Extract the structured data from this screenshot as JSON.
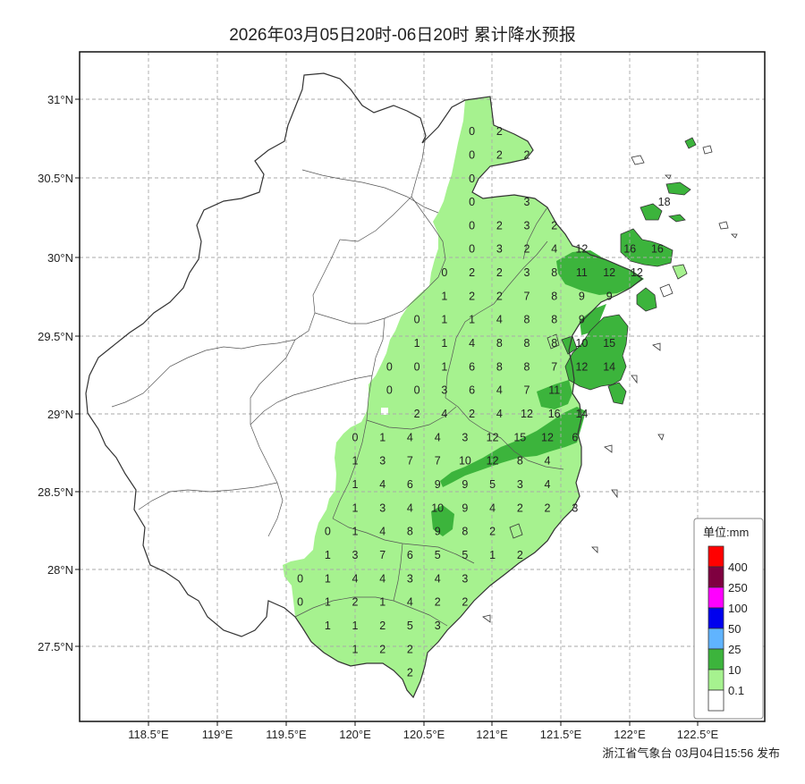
{
  "title": "2026年03月05日20时-06日20时 累计降水预报",
  "footer": "浙江省气象台 03月04日15:56 发布",
  "lat_ticks": [
    "31°N",
    "30.5°N",
    "30°N",
    "29.5°N",
    "29°N",
    "28.5°N",
    "28°N",
    "27.5°N"
  ],
  "lon_ticks": [
    "118.5°E",
    "119°E",
    "119.5°E",
    "120°E",
    "120.5°E",
    "121°E",
    "121.5°E",
    "122°E",
    "122.5°E"
  ],
  "legend": {
    "title": "单位:mm",
    "items": [
      {
        "label": "400",
        "color": "#ff0000"
      },
      {
        "label": "250",
        "color": "#7f0040"
      },
      {
        "label": "100",
        "color": "#ff00ff"
      },
      {
        "label": "50",
        "color": "#0000ee"
      },
      {
        "label": "25",
        "color": "#60b4ff"
      },
      {
        "label": "10",
        "color": "#3cb43c"
      },
      {
        "label": "0.1",
        "color": "#a6f28f"
      },
      {
        "label": "",
        "color": "#ffffff"
      }
    ]
  },
  "colors": {
    "light_rain": "#a6f28f",
    "moderate_rain": "#3cb43c",
    "border": "#333333",
    "grid": "#aaaaaa"
  },
  "grid_values": [
    {
      "lat": 30.8,
      "lon": 120.85,
      "v": "0"
    },
    {
      "lat": 30.8,
      "lon": 121.05,
      "v": "2"
    },
    {
      "lat": 30.65,
      "lon": 120.85,
      "v": "0"
    },
    {
      "lat": 30.65,
      "lon": 121.05,
      "v": "2"
    },
    {
      "lat": 30.65,
      "lon": 121.25,
      "v": "2"
    },
    {
      "lat": 30.5,
      "lon": 120.85,
      "v": "0"
    },
    {
      "lat": 30.35,
      "lon": 120.85,
      "v": "0"
    },
    {
      "lat": 30.35,
      "lon": 121.25,
      "v": "3"
    },
    {
      "lat": 30.2,
      "lon": 120.85,
      "v": "0"
    },
    {
      "lat": 30.2,
      "lon": 121.05,
      "v": "2"
    },
    {
      "lat": 30.2,
      "lon": 121.25,
      "v": "3"
    },
    {
      "lat": 30.2,
      "lon": 121.45,
      "v": "2"
    },
    {
      "lat": 30.05,
      "lon": 120.85,
      "v": "0"
    },
    {
      "lat": 30.05,
      "lon": 121.05,
      "v": "3"
    },
    {
      "lat": 30.05,
      "lon": 121.25,
      "v": "2"
    },
    {
      "lat": 30.05,
      "lon": 121.45,
      "v": "4"
    },
    {
      "lat": 30.05,
      "lon": 121.65,
      "v": "12"
    },
    {
      "lat": 30.35,
      "lon": 122.25,
      "v": "18"
    },
    {
      "lat": 30.05,
      "lon": 122.0,
      "v": "16"
    },
    {
      "lat": 30.05,
      "lon": 122.2,
      "v": "16"
    },
    {
      "lat": 29.9,
      "lon": 120.65,
      "v": "0"
    },
    {
      "lat": 29.9,
      "lon": 120.85,
      "v": "2"
    },
    {
      "lat": 29.9,
      "lon": 121.05,
      "v": "2"
    },
    {
      "lat": 29.9,
      "lon": 121.25,
      "v": "3"
    },
    {
      "lat": 29.9,
      "lon": 121.45,
      "v": "8"
    },
    {
      "lat": 29.9,
      "lon": 121.65,
      "v": "11"
    },
    {
      "lat": 29.9,
      "lon": 121.85,
      "v": "12"
    },
    {
      "lat": 29.9,
      "lon": 122.05,
      "v": "12"
    },
    {
      "lat": 29.75,
      "lon": 120.65,
      "v": "1"
    },
    {
      "lat": 29.75,
      "lon": 120.85,
      "v": "2"
    },
    {
      "lat": 29.75,
      "lon": 121.05,
      "v": "2"
    },
    {
      "lat": 29.75,
      "lon": 121.25,
      "v": "7"
    },
    {
      "lat": 29.75,
      "lon": 121.45,
      "v": "8"
    },
    {
      "lat": 29.75,
      "lon": 121.65,
      "v": "9"
    },
    {
      "lat": 29.75,
      "lon": 121.85,
      "v": "9"
    },
    {
      "lat": 29.6,
      "lon": 120.45,
      "v": "0"
    },
    {
      "lat": 29.6,
      "lon": 120.65,
      "v": "1"
    },
    {
      "lat": 29.6,
      "lon": 120.85,
      "v": "1"
    },
    {
      "lat": 29.6,
      "lon": 121.05,
      "v": "4"
    },
    {
      "lat": 29.6,
      "lon": 121.25,
      "v": "8"
    },
    {
      "lat": 29.6,
      "lon": 121.45,
      "v": "8"
    },
    {
      "lat": 29.6,
      "lon": 121.65,
      "v": "9"
    },
    {
      "lat": 29.45,
      "lon": 120.45,
      "v": "1"
    },
    {
      "lat": 29.45,
      "lon": 120.65,
      "v": "1"
    },
    {
      "lat": 29.45,
      "lon": 120.85,
      "v": "4"
    },
    {
      "lat": 29.45,
      "lon": 121.05,
      "v": "8"
    },
    {
      "lat": 29.45,
      "lon": 121.25,
      "v": "8"
    },
    {
      "lat": 29.45,
      "lon": 121.45,
      "v": "8"
    },
    {
      "lat": 29.45,
      "lon": 121.65,
      "v": "10"
    },
    {
      "lat": 29.45,
      "lon": 121.85,
      "v": "15"
    },
    {
      "lat": 29.3,
      "lon": 120.25,
      "v": "0"
    },
    {
      "lat": 29.3,
      "lon": 120.45,
      "v": "0"
    },
    {
      "lat": 29.3,
      "lon": 120.65,
      "v": "1"
    },
    {
      "lat": 29.3,
      "lon": 120.85,
      "v": "6"
    },
    {
      "lat": 29.3,
      "lon": 121.05,
      "v": "8"
    },
    {
      "lat": 29.3,
      "lon": 121.25,
      "v": "8"
    },
    {
      "lat": 29.3,
      "lon": 121.45,
      "v": "7"
    },
    {
      "lat": 29.3,
      "lon": 121.65,
      "v": "12"
    },
    {
      "lat": 29.3,
      "lon": 121.85,
      "v": "14"
    },
    {
      "lat": 29.15,
      "lon": 120.25,
      "v": "0"
    },
    {
      "lat": 29.15,
      "lon": 120.45,
      "v": "0"
    },
    {
      "lat": 29.15,
      "lon": 120.65,
      "v": "3"
    },
    {
      "lat": 29.15,
      "lon": 120.85,
      "v": "6"
    },
    {
      "lat": 29.15,
      "lon": 121.05,
      "v": "4"
    },
    {
      "lat": 29.15,
      "lon": 121.25,
      "v": "7"
    },
    {
      "lat": 29.15,
      "lon": 121.45,
      "v": "11"
    },
    {
      "lat": 29.0,
      "lon": 120.45,
      "v": "2"
    },
    {
      "lat": 29.0,
      "lon": 120.65,
      "v": "4"
    },
    {
      "lat": 29.0,
      "lon": 120.85,
      "v": "2"
    },
    {
      "lat": 29.0,
      "lon": 121.05,
      "v": "4"
    },
    {
      "lat": 29.0,
      "lon": 121.25,
      "v": "12"
    },
    {
      "lat": 29.0,
      "lon": 121.45,
      "v": "16"
    },
    {
      "lat": 29.0,
      "lon": 121.65,
      "v": "14"
    },
    {
      "lat": 28.85,
      "lon": 120.0,
      "v": "0"
    },
    {
      "lat": 28.85,
      "lon": 120.2,
      "v": "1"
    },
    {
      "lat": 28.85,
      "lon": 120.4,
      "v": "4"
    },
    {
      "lat": 28.85,
      "lon": 120.6,
      "v": "4"
    },
    {
      "lat": 28.85,
      "lon": 120.8,
      "v": "3"
    },
    {
      "lat": 28.85,
      "lon": 121.0,
      "v": "12"
    },
    {
      "lat": 28.85,
      "lon": 121.2,
      "v": "15"
    },
    {
      "lat": 28.85,
      "lon": 121.4,
      "v": "12"
    },
    {
      "lat": 28.85,
      "lon": 121.6,
      "v": "6"
    },
    {
      "lat": 28.7,
      "lon": 120.0,
      "v": "1"
    },
    {
      "lat": 28.7,
      "lon": 120.2,
      "v": "3"
    },
    {
      "lat": 28.7,
      "lon": 120.4,
      "v": "7"
    },
    {
      "lat": 28.7,
      "lon": 120.6,
      "v": "7"
    },
    {
      "lat": 28.7,
      "lon": 120.8,
      "v": "10"
    },
    {
      "lat": 28.7,
      "lon": 121.0,
      "v": "12"
    },
    {
      "lat": 28.7,
      "lon": 121.2,
      "v": "8"
    },
    {
      "lat": 28.7,
      "lon": 121.4,
      "v": "4"
    },
    {
      "lat": 28.55,
      "lon": 120.0,
      "v": "1"
    },
    {
      "lat": 28.55,
      "lon": 120.2,
      "v": "4"
    },
    {
      "lat": 28.55,
      "lon": 120.4,
      "v": "6"
    },
    {
      "lat": 28.55,
      "lon": 120.6,
      "v": "9"
    },
    {
      "lat": 28.55,
      "lon": 120.8,
      "v": "9"
    },
    {
      "lat": 28.55,
      "lon": 121.0,
      "v": "5"
    },
    {
      "lat": 28.55,
      "lon": 121.2,
      "v": "3"
    },
    {
      "lat": 28.55,
      "lon": 121.4,
      "v": "4"
    },
    {
      "lat": 28.4,
      "lon": 120.0,
      "v": "1"
    },
    {
      "lat": 28.4,
      "lon": 120.2,
      "v": "3"
    },
    {
      "lat": 28.4,
      "lon": 120.4,
      "v": "4"
    },
    {
      "lat": 28.4,
      "lon": 120.6,
      "v": "10"
    },
    {
      "lat": 28.4,
      "lon": 120.8,
      "v": "9"
    },
    {
      "lat": 28.4,
      "lon": 121.0,
      "v": "4"
    },
    {
      "lat": 28.4,
      "lon": 121.2,
      "v": "2"
    },
    {
      "lat": 28.4,
      "lon": 121.4,
      "v": "2"
    },
    {
      "lat": 28.4,
      "lon": 121.6,
      "v": "3"
    },
    {
      "lat": 28.25,
      "lon": 119.8,
      "v": "0"
    },
    {
      "lat": 28.25,
      "lon": 120.0,
      "v": "1"
    },
    {
      "lat": 28.25,
      "lon": 120.2,
      "v": "4"
    },
    {
      "lat": 28.25,
      "lon": 120.4,
      "v": "8"
    },
    {
      "lat": 28.25,
      "lon": 120.6,
      "v": "9"
    },
    {
      "lat": 28.25,
      "lon": 120.8,
      "v": "8"
    },
    {
      "lat": 28.25,
      "lon": 121.0,
      "v": "2"
    },
    {
      "lat": 28.1,
      "lon": 119.8,
      "v": "1"
    },
    {
      "lat": 28.1,
      "lon": 120.0,
      "v": "3"
    },
    {
      "lat": 28.1,
      "lon": 120.2,
      "v": "7"
    },
    {
      "lat": 28.1,
      "lon": 120.4,
      "v": "6"
    },
    {
      "lat": 28.1,
      "lon": 120.6,
      "v": "5"
    },
    {
      "lat": 28.1,
      "lon": 120.8,
      "v": "5"
    },
    {
      "lat": 28.1,
      "lon": 121.0,
      "v": "1"
    },
    {
      "lat": 28.1,
      "lon": 121.2,
      "v": "2"
    },
    {
      "lat": 27.95,
      "lon": 119.6,
      "v": "0"
    },
    {
      "lat": 27.95,
      "lon": 119.8,
      "v": "1"
    },
    {
      "lat": 27.95,
      "lon": 120.0,
      "v": "4"
    },
    {
      "lat": 27.95,
      "lon": 120.2,
      "v": "4"
    },
    {
      "lat": 27.95,
      "lon": 120.4,
      "v": "3"
    },
    {
      "lat": 27.95,
      "lon": 120.6,
      "v": "4"
    },
    {
      "lat": 27.95,
      "lon": 120.8,
      "v": "3"
    },
    {
      "lat": 27.8,
      "lon": 119.6,
      "v": "0"
    },
    {
      "lat": 27.8,
      "lon": 119.8,
      "v": "1"
    },
    {
      "lat": 27.8,
      "lon": 120.0,
      "v": "2"
    },
    {
      "lat": 27.8,
      "lon": 120.2,
      "v": "1"
    },
    {
      "lat": 27.8,
      "lon": 120.4,
      "v": "4"
    },
    {
      "lat": 27.8,
      "lon": 120.6,
      "v": "2"
    },
    {
      "lat": 27.8,
      "lon": 120.8,
      "v": "2"
    },
    {
      "lat": 27.65,
      "lon": 119.8,
      "v": "1"
    },
    {
      "lat": 27.65,
      "lon": 120.0,
      "v": "1"
    },
    {
      "lat": 27.65,
      "lon": 120.2,
      "v": "2"
    },
    {
      "lat": 27.65,
      "lon": 120.4,
      "v": "5"
    },
    {
      "lat": 27.65,
      "lon": 120.6,
      "v": "3"
    },
    {
      "lat": 27.5,
      "lon": 120.0,
      "v": "1"
    },
    {
      "lat": 27.5,
      "lon": 120.2,
      "v": "2"
    },
    {
      "lat": 27.5,
      "lon": 120.4,
      "v": "2"
    },
    {
      "lat": 27.35,
      "lon": 120.4,
      "v": "2"
    }
  ]
}
